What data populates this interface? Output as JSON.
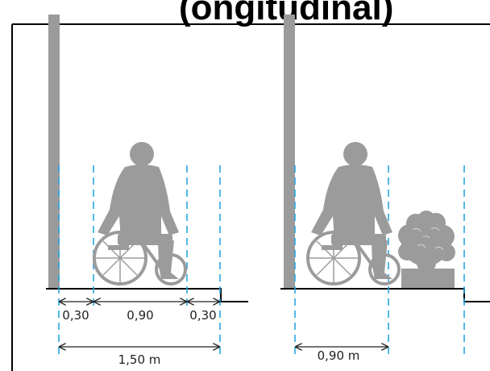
{
  "heading_fragment": "(ongitudinal)",
  "colors": {
    "figure": "#9b9b9b",
    "wall": "#9b9b9b",
    "guide_line": "#2ba7df",
    "dimension": "#222222",
    "frame": "#000000"
  },
  "left_panel": {
    "segments": [
      {
        "label": "0,30"
      },
      {
        "label": "0,90"
      },
      {
        "label": "0,30"
      }
    ],
    "total": {
      "label": "1,50 m"
    }
  },
  "right_panel": {
    "width": {
      "label": "0,90 m"
    },
    "obstacle": "shrub-in-planter-icon"
  },
  "icons": [
    "wheelchair-user-icon",
    "wheelchair-user-icon",
    "shrub-in-planter-icon"
  ]
}
